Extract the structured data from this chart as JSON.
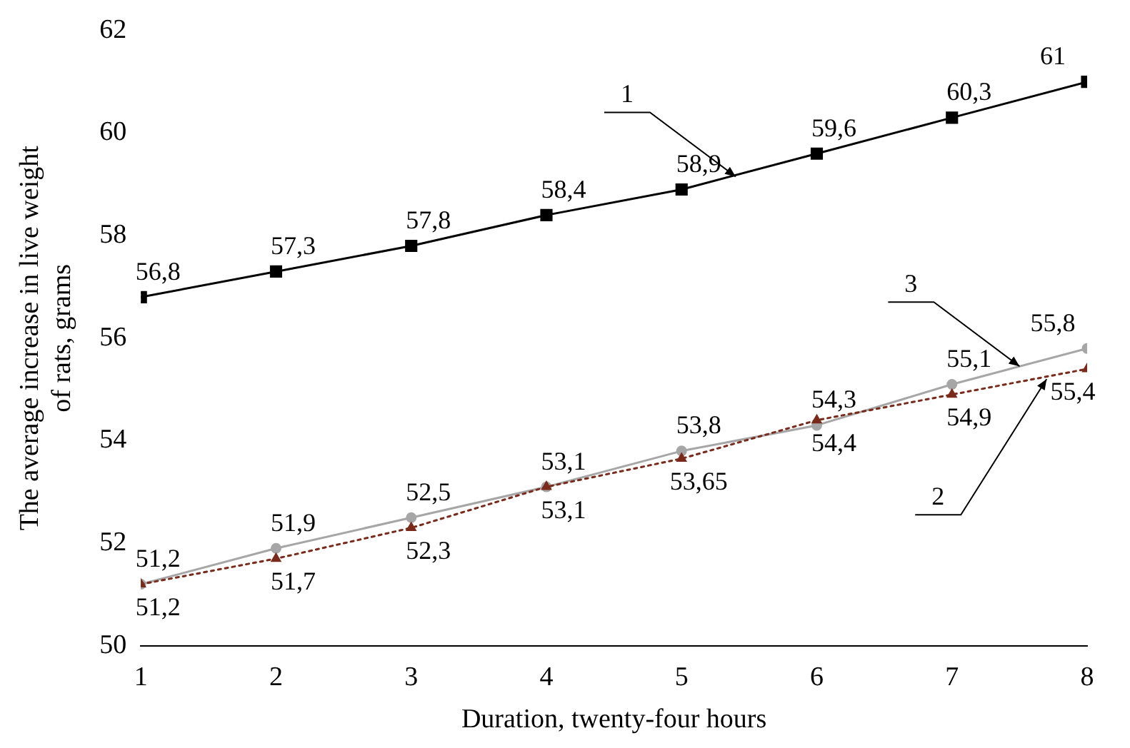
{
  "chart_data": {
    "type": "line",
    "xlabel": "Duration, twenty-four hours",
    "ylabel": "The average increase in live weight\nof rats, grams",
    "x": [
      1,
      2,
      3,
      4,
      5,
      6,
      7,
      8
    ],
    "series": [
      {
        "color": "#000000",
        "marker": "square",
        "line_style": "solid",
        "values": [
          56.8,
          57.3,
          57.8,
          58.4,
          58.9,
          59.6,
          60.3,
          61
        ],
        "value_labels": [
          "56,8",
          "57,3",
          "57,8",
          "58,4",
          "58,9",
          "59,6",
          "60,3",
          "61"
        ]
      },
      {
        "color": "#7a2a1a",
        "marker": "triangle",
        "line_style": "dotted",
        "values": [
          51.2,
          51.7,
          52.3,
          53.1,
          53.65,
          54.4,
          54.9,
          55.4
        ],
        "value_labels": [
          "51,2",
          "51,7",
          "52,3",
          "53,1",
          "53,65",
          "54,4",
          "54,9",
          "55,4"
        ]
      },
      {
        "color": "#a6a6a6",
        "marker": "circle",
        "line_style": "solid",
        "values": [
          51.2,
          51.9,
          52.5,
          53.1,
          53.8,
          54.3,
          55.1,
          55.8
        ],
        "value_labels": [
          "51,2",
          "51,9",
          "52,5",
          "53,1",
          "53,8",
          "54,3",
          "55,1",
          "55,8"
        ]
      }
    ],
    "annotations": [
      {
        "text": "1",
        "x": 5.4,
        "y": 59.15
      },
      {
        "text": "3",
        "x": 7.5,
        "y": 55.45
      },
      {
        "text": "2",
        "x": 7.7,
        "y": 55.2
      }
    ],
    "xlim": [
      1,
      8
    ],
    "xticks": [
      1,
      2,
      3,
      4,
      5,
      6,
      7,
      8
    ],
    "ylim": [
      50,
      62
    ],
    "yticks": [
      50,
      52,
      54,
      56,
      58,
      60,
      62
    ],
    "grid": false,
    "legend": false
  }
}
